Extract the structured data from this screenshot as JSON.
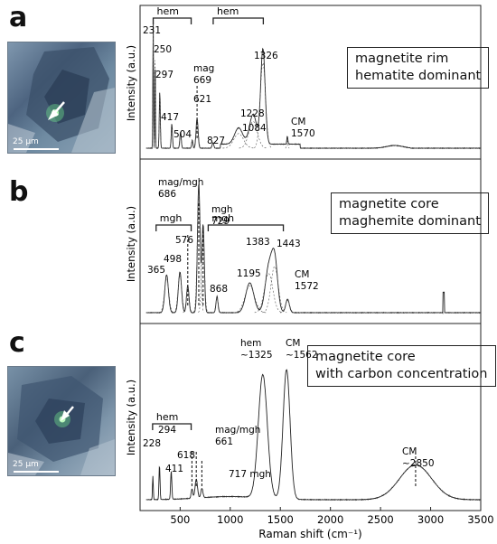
{
  "panels": [
    {
      "letter": "a",
      "annotation": [
        "magnetite rim",
        "hematite dominant"
      ],
      "ylabel": "Intensity (a.u.)",
      "scale_bar": "25 μm"
    },
    {
      "letter": "b",
      "annotation": [
        "magnetite core",
        "maghemite dominant"
      ],
      "ylabel": "Intensity (a.u.)"
    },
    {
      "letter": "c",
      "annotation": [
        "magnetite core",
        "with carbon concentration"
      ],
      "ylabel": "Intensity (a.u.)",
      "scale_bar": "25 μm"
    }
  ],
  "chart_data": [
    {
      "type": "line",
      "panel": "a",
      "xlabel": "Raman shift (cm⁻¹)",
      "ylabel": "Intensity (a.u.)",
      "xlim": [
        100,
        3500
      ],
      "peaks": [
        231,
        250,
        297,
        417,
        504,
        621,
        669,
        827,
        1084,
        1228,
        1326,
        1570
      ],
      "peak_labels": [
        "231",
        "250",
        "297",
        "417",
        "504",
        "621",
        "mag\n669",
        "827",
        "1084",
        "1228",
        "1326",
        "CM\n1570"
      ],
      "brackets": [
        {
          "label": "hem",
          "from": 231,
          "to": 610
        },
        {
          "label": "hem",
          "from": 830,
          "to": 1330
        }
      ]
    },
    {
      "type": "line",
      "panel": "b",
      "xlabel": "Raman shift (cm⁻¹)",
      "ylabel": "Intensity (a.u.)",
      "xlim": [
        100,
        3500
      ],
      "peaks": [
        365,
        498,
        576,
        686,
        729,
        868,
        1195,
        1383,
        1443,
        1572
      ],
      "peak_labels": [
        "365",
        "498",
        "576",
        "mag/mgh\n686",
        "mgh\n729",
        "868",
        "1195",
        "1383",
        "1443",
        "CM\n1572"
      ],
      "brackets": [
        {
          "label": "mgh",
          "from": 260,
          "to": 610
        },
        {
          "label": "mgh",
          "from": 780,
          "to": 1530
        }
      ]
    },
    {
      "type": "line",
      "panel": "c",
      "xlabel": "Raman shift (cm⁻¹)",
      "ylabel": "Intensity (a.u.)",
      "xlim": [
        100,
        3500
      ],
      "x_ticks": [
        500,
        1000,
        1500,
        2000,
        2500,
        3000,
        3500
      ],
      "peaks": [
        228,
        294,
        411,
        618,
        661,
        717,
        1325,
        1562,
        2850
      ],
      "peak_labels": [
        "228",
        "294",
        "411",
        "618",
        "mag/mgh\n661",
        "717 mgh",
        "hem\n~1325",
        "CM\n~1562",
        "CM\n~2850"
      ],
      "brackets": [
        {
          "label": "hem",
          "from": 225,
          "to": 610
        }
      ]
    }
  ]
}
